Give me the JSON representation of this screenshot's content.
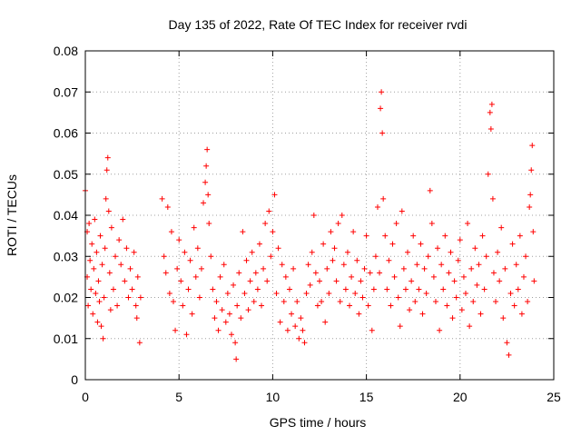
{
  "chart_data": {
    "type": "scatter",
    "title": "Day 135 of 2022, Rate Of TEC Index for receiver rvdi",
    "xlabel": "GPS time / hours",
    "ylabel": "ROTI / TECUs",
    "xlim": [
      0,
      25
    ],
    "ylim": [
      0,
      0.08
    ],
    "x_ticks": [
      "0",
      "5",
      "10",
      "15",
      "20",
      "25"
    ],
    "y_ticks": [
      "0",
      "0.01",
      "0.02",
      "0.03",
      "0.04",
      "0.05",
      "0.06",
      "0.07",
      "0.08"
    ],
    "grid": true,
    "marker": "plus",
    "series": [
      {
        "color": "#ff0000",
        "points": [
          [
            0.0,
            0.046
          ],
          [
            0.1,
            0.036
          ],
          [
            0.1,
            0.025
          ],
          [
            0.15,
            0.018
          ],
          [
            0.2,
            0.038
          ],
          [
            0.25,
            0.029
          ],
          [
            0.3,
            0.022
          ],
          [
            0.35,
            0.033
          ],
          [
            0.4,
            0.016
          ],
          [
            0.45,
            0.027
          ],
          [
            0.5,
            0.039
          ],
          [
            0.55,
            0.021
          ],
          [
            0.6,
            0.031
          ],
          [
            0.65,
            0.014
          ],
          [
            0.7,
            0.024
          ],
          [
            0.75,
            0.019
          ],
          [
            0.8,
            0.035
          ],
          [
            0.85,
            0.013
          ],
          [
            0.9,
            0.028
          ],
          [
            0.95,
            0.01
          ],
          [
            1.0,
            0.02
          ],
          [
            1.05,
            0.032
          ],
          [
            1.1,
            0.044
          ],
          [
            1.15,
            0.051
          ],
          [
            1.2,
            0.054
          ],
          [
            1.25,
            0.041
          ],
          [
            1.3,
            0.026
          ],
          [
            1.35,
            0.017
          ],
          [
            1.4,
            0.037
          ],
          [
            1.5,
            0.022
          ],
          [
            1.6,
            0.03
          ],
          [
            1.7,
            0.018
          ],
          [
            1.8,
            0.034
          ],
          [
            1.9,
            0.028
          ],
          [
            2.0,
            0.039
          ],
          [
            2.1,
            0.024
          ],
          [
            2.2,
            0.032
          ],
          [
            2.3,
            0.02
          ],
          [
            2.4,
            0.027
          ],
          [
            2.5,
            0.022
          ],
          [
            2.6,
            0.031
          ],
          [
            2.7,
            0.018
          ],
          [
            2.75,
            0.015
          ],
          [
            2.8,
            0.025
          ],
          [
            2.9,
            0.009
          ],
          [
            2.95,
            0.02
          ],
          [
            4.1,
            0.044
          ],
          [
            4.2,
            0.03
          ],
          [
            4.3,
            0.026
          ],
          [
            4.4,
            0.042
          ],
          [
            4.5,
            0.021
          ],
          [
            4.6,
            0.036
          ],
          [
            4.7,
            0.019
          ],
          [
            4.8,
            0.012
          ],
          [
            4.9,
            0.027
          ],
          [
            5.0,
            0.034
          ],
          [
            5.1,
            0.024
          ],
          [
            5.2,
            0.018
          ],
          [
            5.3,
            0.031
          ],
          [
            5.4,
            0.011
          ],
          [
            5.5,
            0.022
          ],
          [
            5.6,
            0.029
          ],
          [
            5.7,
            0.016
          ],
          [
            5.8,
            0.037
          ],
          [
            5.9,
            0.025
          ],
          [
            6.0,
            0.032
          ],
          [
            6.1,
            0.02
          ],
          [
            6.2,
            0.027
          ],
          [
            6.3,
            0.043
          ],
          [
            6.4,
            0.048
          ],
          [
            6.45,
            0.052
          ],
          [
            6.5,
            0.056
          ],
          [
            6.55,
            0.045
          ],
          [
            6.6,
            0.038
          ],
          [
            6.7,
            0.03
          ],
          [
            6.8,
            0.022
          ],
          [
            6.9,
            0.015
          ],
          [
            7.0,
            0.019
          ],
          [
            7.1,
            0.012
          ],
          [
            7.2,
            0.025
          ],
          [
            7.3,
            0.017
          ],
          [
            7.4,
            0.028
          ],
          [
            7.5,
            0.014
          ],
          [
            7.6,
            0.021
          ],
          [
            7.7,
            0.016
          ],
          [
            7.8,
            0.011
          ],
          [
            7.9,
            0.023
          ],
          [
            8.0,
            0.009
          ],
          [
            8.05,
            0.005
          ],
          [
            8.1,
            0.018
          ],
          [
            8.2,
            0.026
          ],
          [
            8.3,
            0.015
          ],
          [
            8.4,
            0.036
          ],
          [
            8.5,
            0.021
          ],
          [
            8.6,
            0.029
          ],
          [
            8.7,
            0.017
          ],
          [
            8.8,
            0.024
          ],
          [
            8.9,
            0.031
          ],
          [
            9.0,
            0.019
          ],
          [
            9.1,
            0.026
          ],
          [
            9.2,
            0.022
          ],
          [
            9.3,
            0.033
          ],
          [
            9.4,
            0.018
          ],
          [
            9.5,
            0.027
          ],
          [
            9.6,
            0.038
          ],
          [
            9.7,
            0.024
          ],
          [
            9.8,
            0.041
          ],
          [
            9.9,
            0.03
          ],
          [
            10.0,
            0.036
          ],
          [
            10.1,
            0.045
          ],
          [
            10.2,
            0.021
          ],
          [
            10.3,
            0.032
          ],
          [
            10.4,
            0.014
          ],
          [
            10.5,
            0.028
          ],
          [
            10.6,
            0.019
          ],
          [
            10.7,
            0.025
          ],
          [
            10.8,
            0.012
          ],
          [
            10.9,
            0.022
          ],
          [
            11.0,
            0.016
          ],
          [
            11.1,
            0.027
          ],
          [
            11.2,
            0.013
          ],
          [
            11.3,
            0.019
          ],
          [
            11.4,
            0.01
          ],
          [
            11.5,
            0.015
          ],
          [
            11.6,
            0.012
          ],
          [
            11.7,
            0.009
          ],
          [
            11.8,
            0.021
          ],
          [
            11.9,
            0.028
          ],
          [
            12.0,
            0.023
          ],
          [
            12.1,
            0.031
          ],
          [
            12.2,
            0.04
          ],
          [
            12.3,
            0.026
          ],
          [
            12.4,
            0.018
          ],
          [
            12.5,
            0.024
          ],
          [
            12.6,
            0.019
          ],
          [
            12.7,
            0.033
          ],
          [
            12.8,
            0.014
          ],
          [
            12.9,
            0.027
          ],
          [
            13.0,
            0.021
          ],
          [
            13.1,
            0.036
          ],
          [
            13.2,
            0.029
          ],
          [
            13.3,
            0.032
          ],
          [
            13.4,
            0.024
          ],
          [
            13.5,
            0.038
          ],
          [
            13.6,
            0.019
          ],
          [
            13.7,
            0.04
          ],
          [
            13.8,
            0.028
          ],
          [
            13.9,
            0.022
          ],
          [
            14.0,
            0.031
          ],
          [
            14.1,
            0.018
          ],
          [
            14.2,
            0.025
          ],
          [
            14.3,
            0.036
          ],
          [
            14.4,
            0.021
          ],
          [
            14.5,
            0.029
          ],
          [
            14.6,
            0.016
          ],
          [
            14.7,
            0.024
          ],
          [
            14.8,
            0.02
          ],
          [
            14.9,
            0.027
          ],
          [
            15.0,
            0.035
          ],
          [
            15.1,
            0.018
          ],
          [
            15.2,
            0.026
          ],
          [
            15.3,
            0.012
          ],
          [
            15.4,
            0.022
          ],
          [
            15.5,
            0.03
          ],
          [
            15.6,
            0.042
          ],
          [
            15.7,
            0.026
          ],
          [
            15.75,
            0.066
          ],
          [
            15.8,
            0.07
          ],
          [
            15.85,
            0.06
          ],
          [
            15.9,
            0.044
          ],
          [
            16.0,
            0.035
          ],
          [
            16.1,
            0.022
          ],
          [
            16.2,
            0.029
          ],
          [
            16.3,
            0.018
          ],
          [
            16.4,
            0.033
          ],
          [
            16.5,
            0.025
          ],
          [
            16.6,
            0.038
          ],
          [
            16.7,
            0.02
          ],
          [
            16.8,
            0.013
          ],
          [
            16.9,
            0.041
          ],
          [
            17.0,
            0.027
          ],
          [
            17.1,
            0.022
          ],
          [
            17.2,
            0.031
          ],
          [
            17.3,
            0.017
          ],
          [
            17.4,
            0.024
          ],
          [
            17.5,
            0.035
          ],
          [
            17.6,
            0.019
          ],
          [
            17.7,
            0.028
          ],
          [
            17.8,
            0.022
          ],
          [
            17.9,
            0.033
          ],
          [
            18.0,
            0.016
          ],
          [
            18.1,
            0.027
          ],
          [
            18.2,
            0.021
          ],
          [
            18.3,
            0.03
          ],
          [
            18.4,
            0.046
          ],
          [
            18.5,
            0.038
          ],
          [
            18.6,
            0.025
          ],
          [
            18.7,
            0.019
          ],
          [
            18.8,
            0.032
          ],
          [
            18.9,
            0.012
          ],
          [
            19.0,
            0.028
          ],
          [
            19.1,
            0.022
          ],
          [
            19.2,
            0.035
          ],
          [
            19.3,
            0.018
          ],
          [
            19.4,
            0.026
          ],
          [
            19.5,
            0.031
          ],
          [
            19.6,
            0.015
          ],
          [
            19.7,
            0.024
          ],
          [
            19.8,
            0.02
          ],
          [
            19.9,
            0.029
          ],
          [
            20.0,
            0.034
          ],
          [
            20.1,
            0.017
          ],
          [
            20.2,
            0.025
          ],
          [
            20.3,
            0.021
          ],
          [
            20.4,
            0.038
          ],
          [
            20.5,
            0.013
          ],
          [
            20.6,
            0.027
          ],
          [
            20.7,
            0.019
          ],
          [
            20.8,
            0.032
          ],
          [
            20.9,
            0.023
          ],
          [
            21.0,
            0.028
          ],
          [
            21.1,
            0.016
          ],
          [
            21.2,
            0.035
          ],
          [
            21.3,
            0.022
          ],
          [
            21.4,
            0.03
          ],
          [
            21.5,
            0.05
          ],
          [
            21.6,
            0.065
          ],
          [
            21.65,
            0.061
          ],
          [
            21.7,
            0.067
          ],
          [
            21.75,
            0.044
          ],
          [
            21.8,
            0.026
          ],
          [
            21.9,
            0.019
          ],
          [
            22.0,
            0.031
          ],
          [
            22.1,
            0.024
          ],
          [
            22.2,
            0.037
          ],
          [
            22.3,
            0.015
          ],
          [
            22.4,
            0.027
          ],
          [
            22.5,
            0.009
          ],
          [
            22.6,
            0.006
          ],
          [
            22.7,
            0.021
          ],
          [
            22.8,
            0.033
          ],
          [
            22.9,
            0.018
          ],
          [
            23.0,
            0.028
          ],
          [
            23.1,
            0.022
          ],
          [
            23.2,
            0.035
          ],
          [
            23.3,
            0.016
          ],
          [
            23.4,
            0.025
          ],
          [
            23.5,
            0.03
          ],
          [
            23.6,
            0.019
          ],
          [
            23.7,
            0.042
          ],
          [
            23.75,
            0.045
          ],
          [
            23.8,
            0.051
          ],
          [
            23.85,
            0.057
          ],
          [
            23.9,
            0.036
          ],
          [
            23.95,
            0.024
          ]
        ]
      }
    ]
  }
}
